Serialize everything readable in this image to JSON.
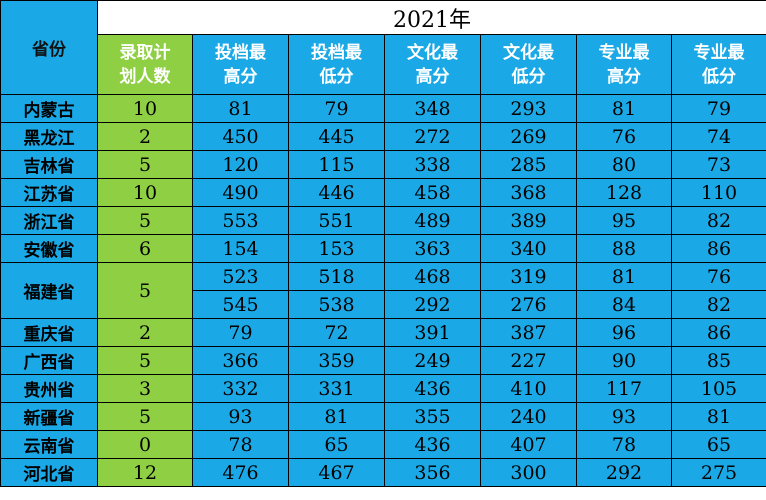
{
  "header": {
    "province_label": "省份",
    "year": "2021年",
    "columns": [
      {
        "l1": "录取计",
        "l2": "划人数"
      },
      {
        "l1": "投档最",
        "l2": "高分"
      },
      {
        "l1": "投档最",
        "l2": "低分"
      },
      {
        "l1": "文化最",
        "l2": "高分"
      },
      {
        "l1": "文化最",
        "l2": "低分"
      },
      {
        "l1": "专业最",
        "l2": "高分"
      },
      {
        "l1": "专业最",
        "l2": "低分"
      }
    ]
  },
  "rows": [
    {
      "province": "内蒙古",
      "plan": "10",
      "vals": [
        "81",
        "79",
        "348",
        "293",
        "81",
        "79"
      ]
    },
    {
      "province": "黑龙江",
      "plan": "2",
      "vals": [
        "450",
        "445",
        "272",
        "269",
        "76",
        "74"
      ]
    },
    {
      "province": "吉林省",
      "plan": "5",
      "vals": [
        "120",
        "115",
        "338",
        "285",
        "80",
        "73"
      ]
    },
    {
      "province": "江苏省",
      "plan": "10",
      "vals": [
        "490",
        "446",
        "458",
        "368",
        "128",
        "110"
      ]
    },
    {
      "province": "浙江省",
      "plan": "5",
      "vals": [
        "553",
        "551",
        "489",
        "389",
        "95",
        "82"
      ]
    },
    {
      "province": "安徽省",
      "plan": "6",
      "vals": [
        "154",
        "153",
        "363",
        "340",
        "88",
        "86"
      ]
    },
    {
      "province": "福建省",
      "plan": "5",
      "vals": [
        "523",
        "518",
        "468",
        "319",
        "81",
        "76"
      ],
      "vals2": [
        "545",
        "538",
        "292",
        "276",
        "84",
        "82"
      ]
    },
    {
      "province": "重庆省",
      "plan": "2",
      "vals": [
        "79",
        "72",
        "391",
        "387",
        "96",
        "86"
      ]
    },
    {
      "province": "广西省",
      "plan": "5",
      "vals": [
        "366",
        "359",
        "249",
        "227",
        "90",
        "85"
      ]
    },
    {
      "province": "贵州省",
      "plan": "3",
      "vals": [
        "332",
        "331",
        "436",
        "410",
        "117",
        "105"
      ]
    },
    {
      "province": "新疆省",
      "plan": "5",
      "vals": [
        "93",
        "81",
        "355",
        "240",
        "93",
        "81"
      ]
    },
    {
      "province": "云南省",
      "plan": "0",
      "vals": [
        "78",
        "65",
        "436",
        "407",
        "78",
        "65"
      ]
    },
    {
      "province": "河北省",
      "plan": "12",
      "vals": [
        "476",
        "467",
        "356",
        "300",
        "292",
        "275"
      ]
    }
  ]
}
